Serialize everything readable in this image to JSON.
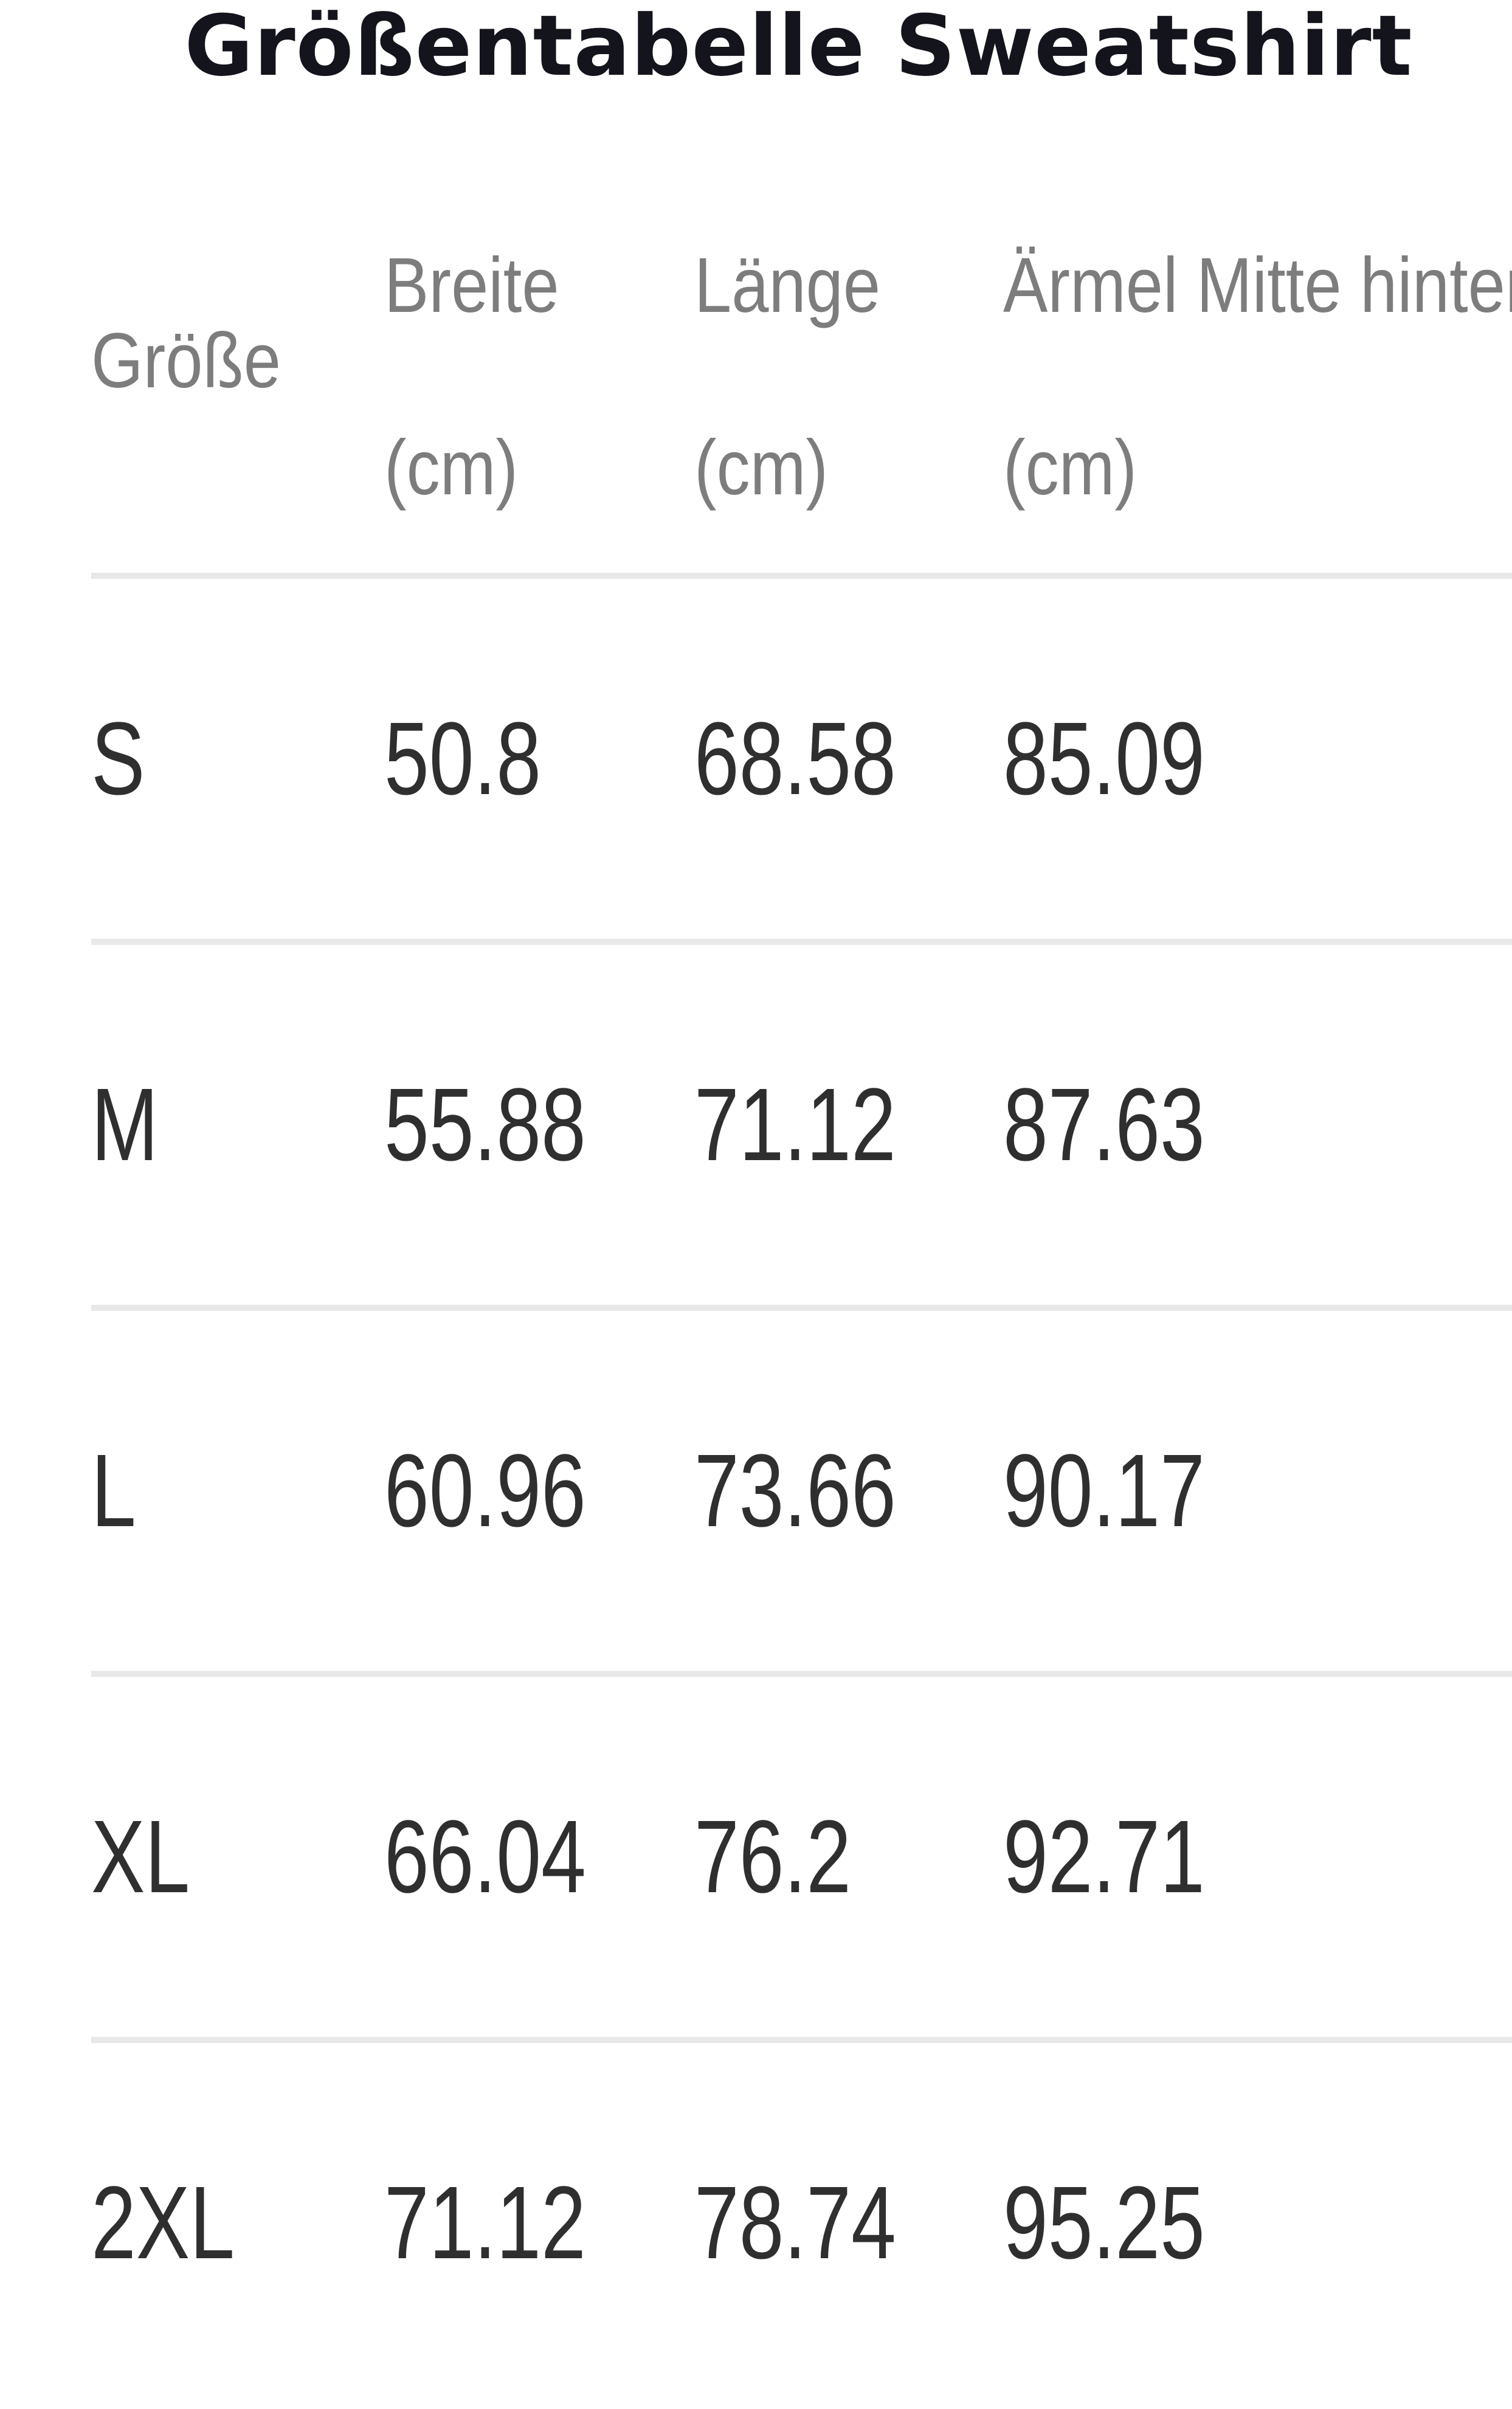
{
  "title": "Größentabelle Sweatshirt",
  "table": {
    "headers": {
      "size": "Größe",
      "breite": [
        "Breite",
        "(cm)"
      ],
      "laenge": [
        "Länge",
        "(cm)"
      ],
      "aermel": [
        "Ärmel Mitte hinten",
        "(cm)"
      ]
    },
    "rows": [
      {
        "size": "S",
        "breite": "50.8",
        "laenge": "68.58",
        "aermel": "85.09"
      },
      {
        "size": "M",
        "breite": "55.88",
        "laenge": "71.12",
        "aermel": "87.63"
      },
      {
        "size": "L",
        "breite": "60.96",
        "laenge": "73.66",
        "aermel": "90.17"
      },
      {
        "size": "XL",
        "breite": "66.04",
        "laenge": "76.2",
        "aermel": "92.71"
      },
      {
        "size": "2XL",
        "breite": "71.12",
        "laenge": "78.74",
        "aermel": "95.25"
      }
    ]
  },
  "colors": {
    "title": "#14141c",
    "header_text": "#7d7d7d",
    "cell_text": "#2f2f2f",
    "divider": "#e8e8e8"
  }
}
